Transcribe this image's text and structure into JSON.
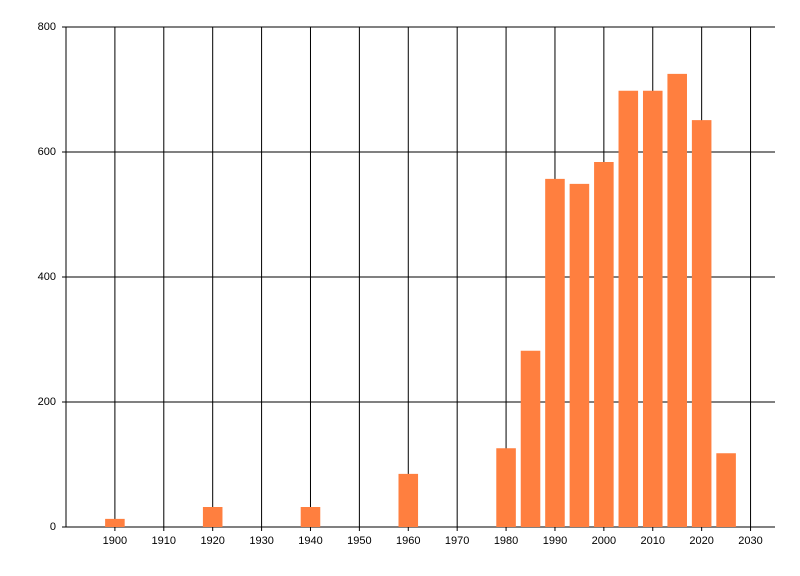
{
  "chart_data": {
    "type": "bar",
    "x": [
      1900,
      1920,
      1940,
      1960,
      1980,
      1985,
      1990,
      1995,
      2000,
      2005,
      2010,
      2015,
      2020,
      2025
    ],
    "values": [
      13,
      32,
      32,
      85,
      126,
      282,
      557,
      549,
      584,
      698,
      698,
      725,
      651,
      118
    ],
    "color": "#ff7f3f",
    "xlim": [
      1890,
      2035
    ],
    "xticks": [
      1900,
      1910,
      1920,
      1930,
      1940,
      1950,
      1960,
      1970,
      1980,
      1990,
      2000,
      2010,
      2020,
      2030
    ],
    "ylim": [
      0,
      800
    ],
    "yticks": [
      0,
      200,
      400,
      600,
      800
    ],
    "grid": true
  }
}
